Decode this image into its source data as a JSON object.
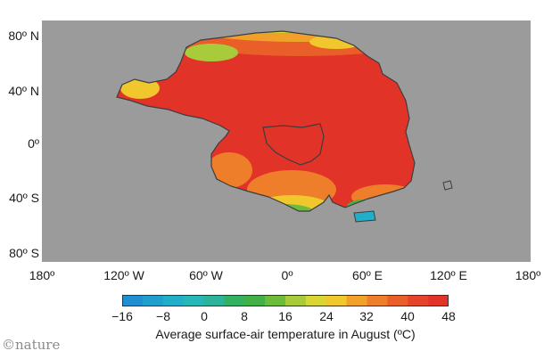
{
  "map": {
    "ocean_color": "#9b9b9b",
    "coastline_color": "#3d3d3d",
    "lat_labels": [
      "80º N",
      "40º N",
      "0º",
      "40º S",
      "80º S"
    ],
    "lon_labels": [
      "180º",
      "120º W",
      "60º W",
      "0º",
      "60º E",
      "120º E",
      "180º"
    ]
  },
  "colorbar": {
    "ticks": [
      "−16",
      "−8",
      "0",
      "8",
      "16",
      "24",
      "32",
      "40",
      "48"
    ],
    "min": -16,
    "max": 48,
    "step": 4,
    "title": "Average surface-air temperature in August (ºC)",
    "colors": [
      "#1f8fd0",
      "#1fa0cc",
      "#21aec9",
      "#28b7b9",
      "#2cb39b",
      "#34b061",
      "#41b147",
      "#6dbb3b",
      "#a8cb3b",
      "#d7d635",
      "#f0c72c",
      "#f1a12a",
      "#ee7e2a",
      "#ea5e2a",
      "#e6442a",
      "#e23329"
    ]
  },
  "credit": "©nature"
}
